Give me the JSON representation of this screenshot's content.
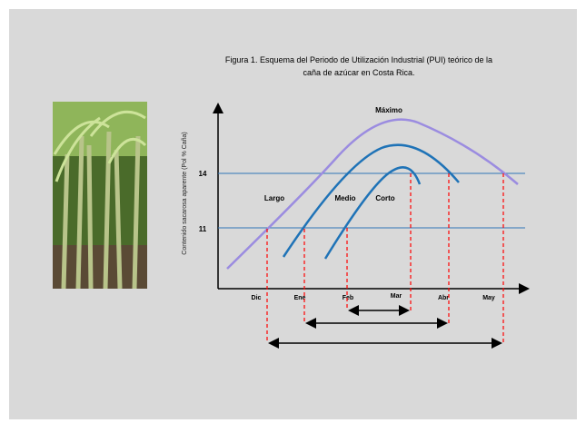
{
  "figure": {
    "title_lines": [
      "Figura  1. Esquema del Periodo de Utilización Industrial (PUI) teórico de la",
      "caña de azúcar en Costa Rica."
    ],
    "y_axis_label": "Contenido sacarosa aparente (Pol % Caña)",
    "y_tick_labels": [
      "14",
      "11"
    ],
    "months": [
      "Dic",
      "Ene",
      "Feb",
      "Mar",
      "Abr",
      "May"
    ],
    "curve_labels": [
      "Máximo",
      "Largo",
      "Medio",
      "Corto"
    ]
  }
}
